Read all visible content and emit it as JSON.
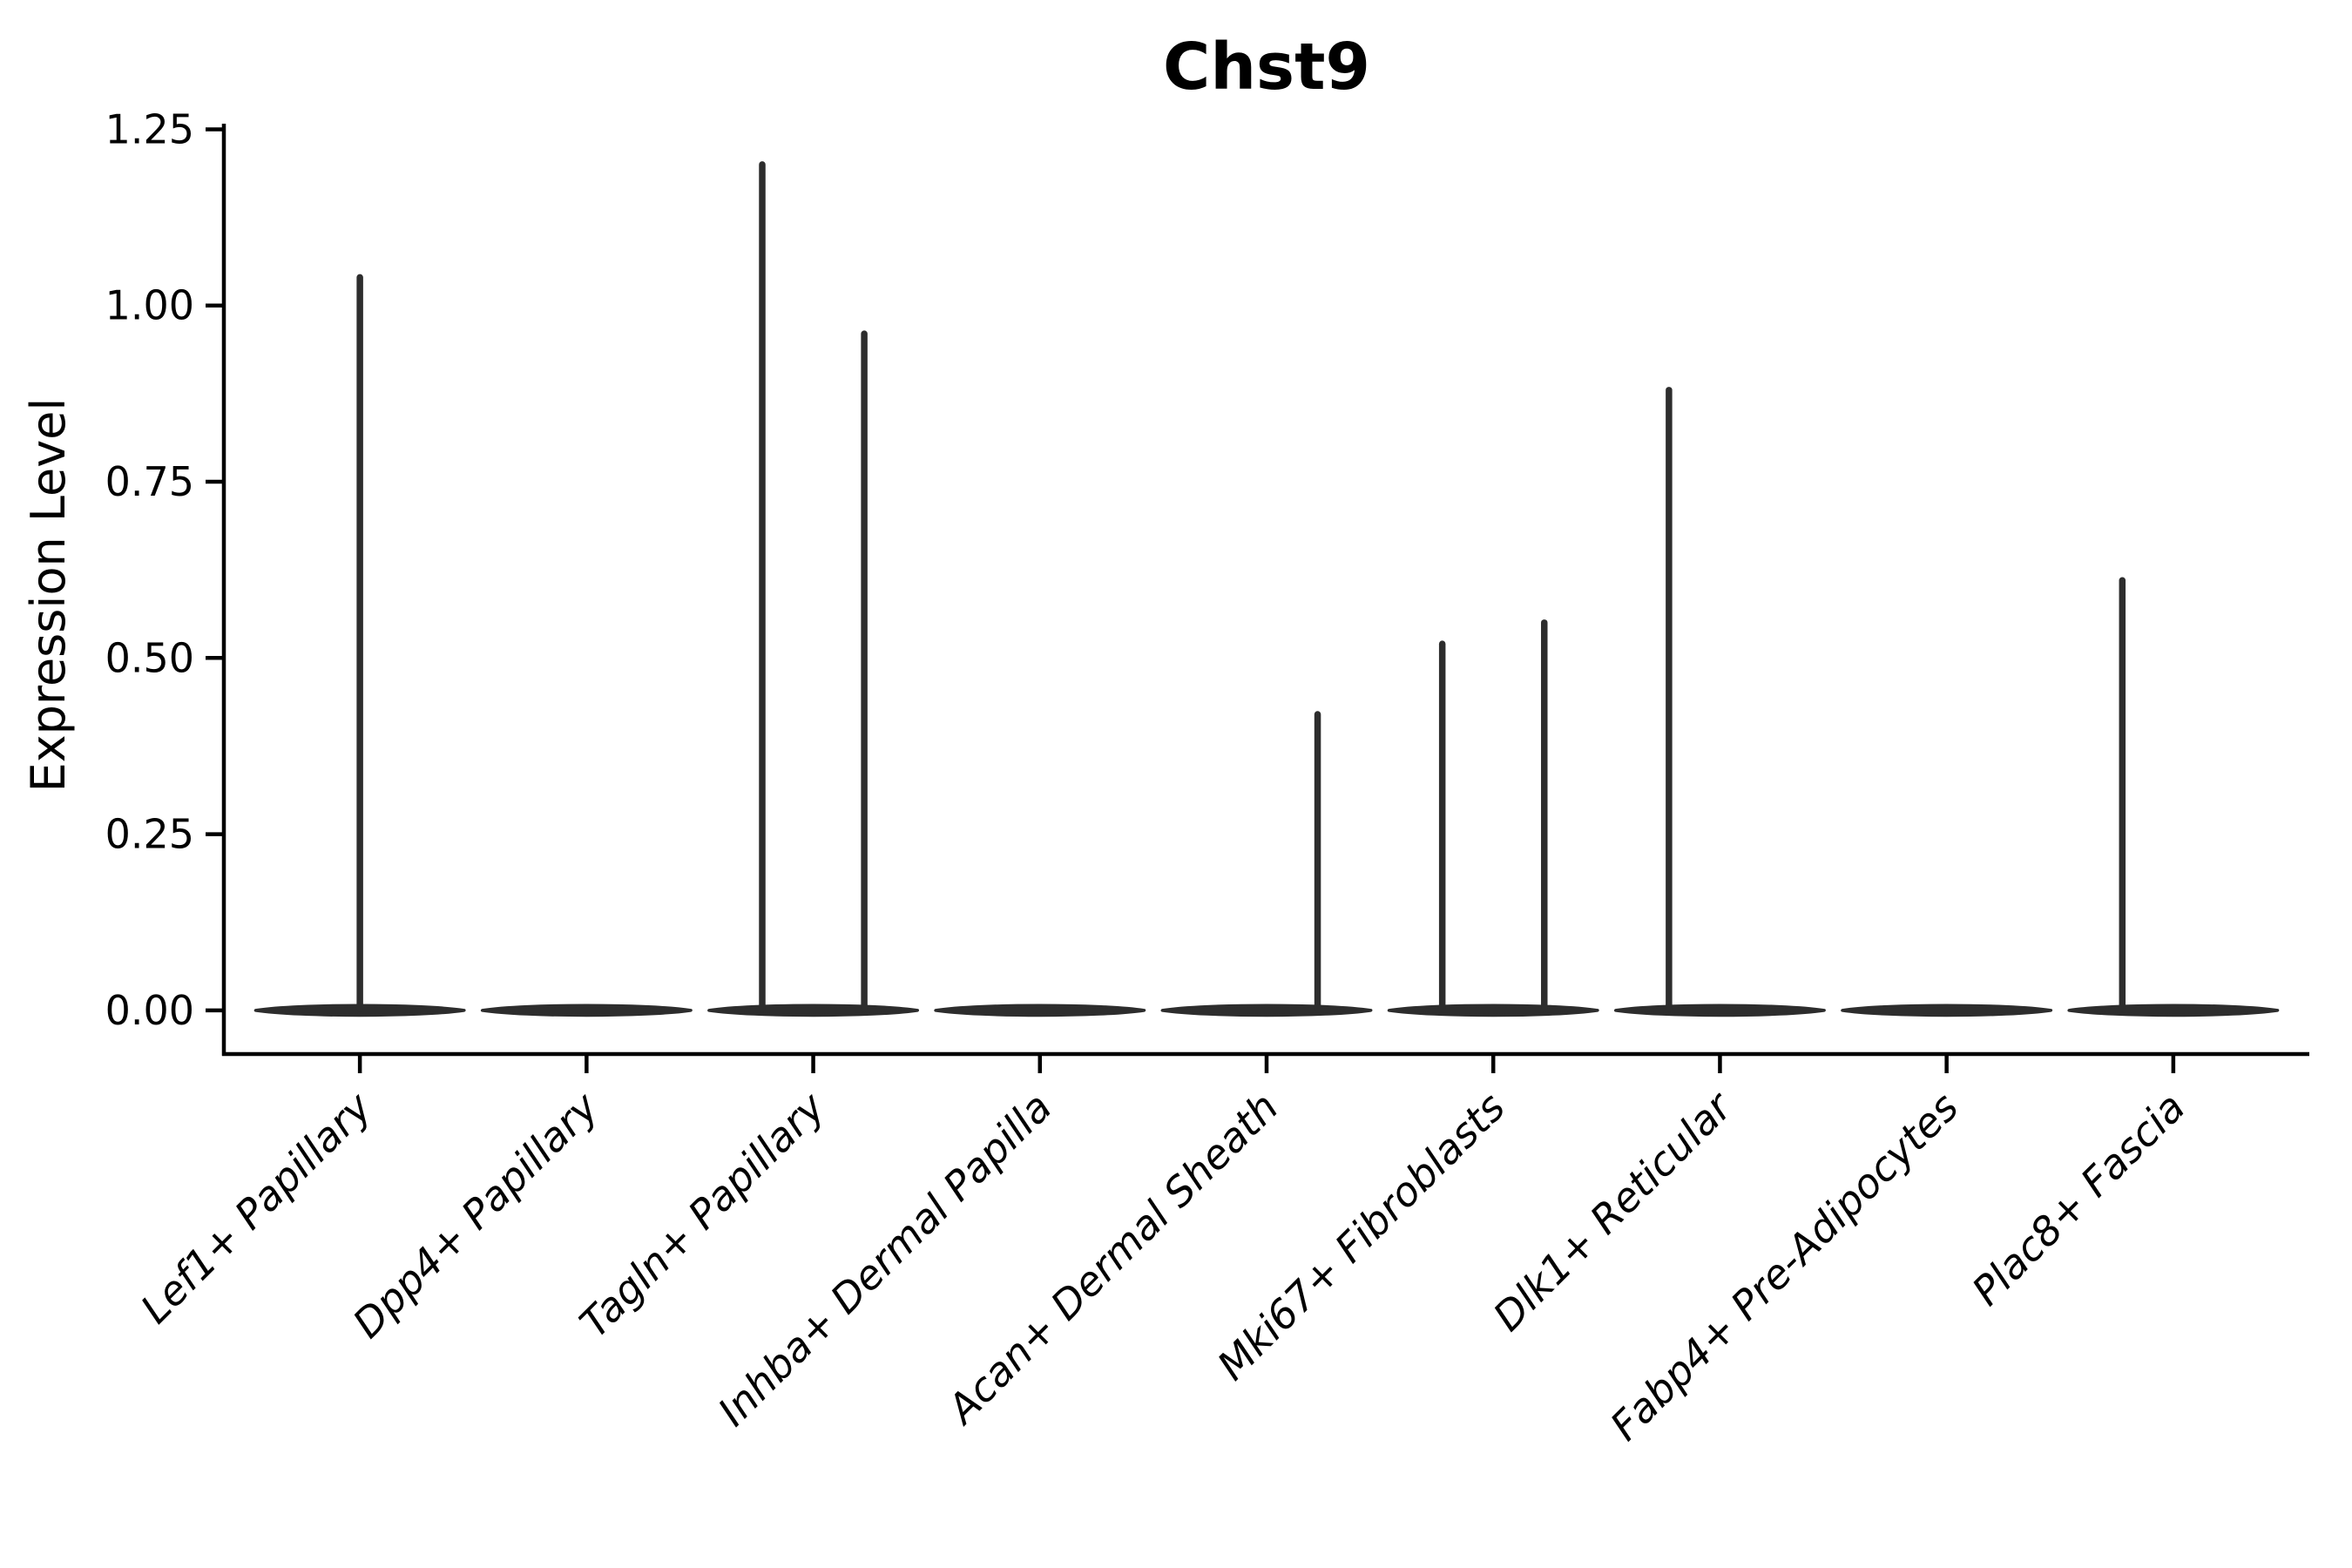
{
  "figure": {
    "title": "Chst9",
    "background_color": "#ffffff"
  },
  "chart_data": {
    "type": "violin",
    "title": "Chst9",
    "xlabel": "",
    "ylabel": "Expression Level",
    "categories": [
      "Lef1+ Papillary",
      "Dpp4+ Papillary",
      "Tagln+ Papillary",
      "Inhba+ Dermal Papilla",
      "Acan+ Dermal Sheath",
      "Mki67+ Fibroblasts",
      "Dlk1+ Reticular",
      "Fabp4+ Pre-Adipocytes",
      "Plac8+ Fascia"
    ],
    "ytick_labels": [
      "0.00",
      "0.25",
      "0.50",
      "0.75",
      "1.00",
      "1.25"
    ],
    "ytick_values": [
      0.0,
      0.25,
      0.5,
      0.75,
      1.0,
      1.25
    ],
    "ylim": [
      -0.062,
      1.258
    ],
    "xlim": [
      -0.6,
      8.6
    ],
    "grid": false,
    "legend": null,
    "violin_color": "#2d2d2d",
    "axis_color": "#000000",
    "violin_width_fraction": 0.92,
    "series": [
      {
        "category": "Lef1+ Papillary",
        "base_value": 0.0,
        "spikes": [
          {
            "offset": 0.0,
            "max_expression": 1.04
          }
        ]
      },
      {
        "category": "Dpp4+ Papillary",
        "base_value": 0.0,
        "spikes": []
      },
      {
        "category": "Tagln+ Papillary",
        "base_value": 0.0,
        "spikes": [
          {
            "offset": -0.225,
            "max_expression": 1.2
          },
          {
            "offset": 0.225,
            "max_expression": 0.96
          }
        ]
      },
      {
        "category": "Inhba+ Dermal Papilla",
        "base_value": 0.0,
        "spikes": []
      },
      {
        "category": "Acan+ Dermal Sheath",
        "base_value": 0.0,
        "spikes": [
          {
            "offset": 0.225,
            "max_expression": 0.42
          }
        ]
      },
      {
        "category": "Mki67+ Fibroblasts",
        "base_value": 0.0,
        "spikes": [
          {
            "offset": -0.225,
            "max_expression": 0.52
          },
          {
            "offset": 0.225,
            "max_expression": 0.55
          }
        ]
      },
      {
        "category": "Dlk1+ Reticular",
        "base_value": 0.0,
        "spikes": [
          {
            "offset": -0.225,
            "max_expression": 0.88
          }
        ]
      },
      {
        "category": "Fabp4+ Pre-Adipocytes",
        "base_value": 0.0,
        "spikes": []
      },
      {
        "category": "Plac8+ Fascia",
        "base_value": 0.0,
        "spikes": [
          {
            "offset": -0.225,
            "max_expression": 0.61
          }
        ]
      }
    ]
  }
}
